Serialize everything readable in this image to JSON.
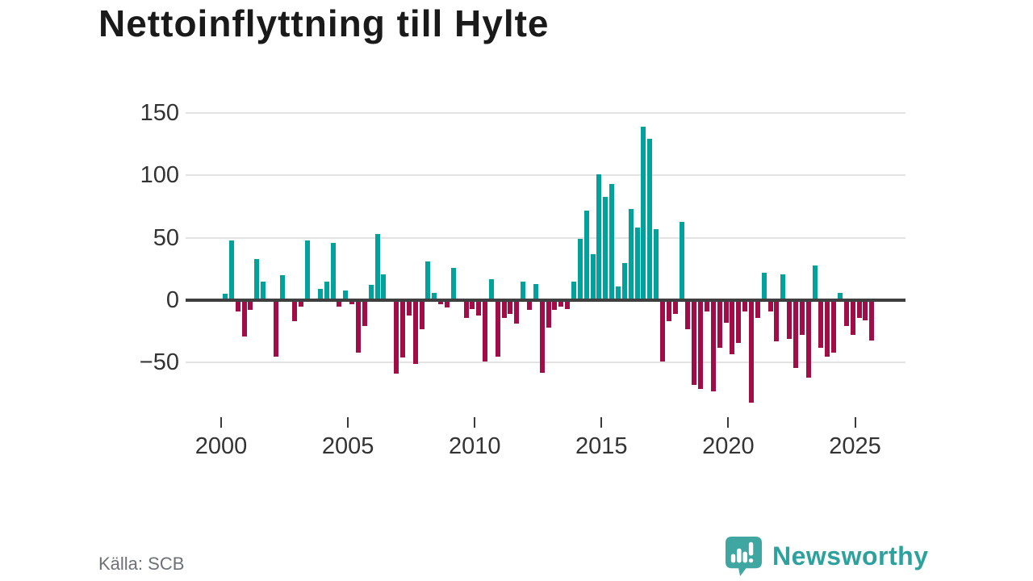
{
  "title": "Nettoinflyttning till Hylte",
  "source": "Källa: SCB",
  "brand": {
    "name": "Newsworthy"
  },
  "colors": {
    "positive": "#00a29b",
    "negative": "#a10d47",
    "grid": "#e3e3e3",
    "zero_line": "#3f3f3f",
    "title": "#1a1a1a",
    "axis_label": "#333333",
    "source_text": "#6e7177",
    "brand_teal": "#2da19d",
    "badge_teal": "#3fa6a1"
  },
  "chart_data": {
    "type": "bar",
    "title": "Nettoinflyttning till Hylte",
    "frequency": "quarterly",
    "x_ticks": [
      2000,
      2005,
      2010,
      2015,
      2020,
      2025
    ],
    "y_ticks": [
      150,
      100,
      50,
      0,
      -50
    ],
    "ylim": [
      -90,
      160
    ],
    "grid": true,
    "legend": "none",
    "series_name": "Nettoinflyttning",
    "points": [
      [
        "2000 Q1",
        5
      ],
      [
        "2000 Q2",
        48
      ],
      [
        "2000 Q3",
        -9
      ],
      [
        "2000 Q4",
        -29
      ],
      [
        "2001 Q1",
        -8
      ],
      [
        "2001 Q2",
        33
      ],
      [
        "2001 Q3",
        15
      ],
      [
        "2001 Q4",
        0
      ],
      [
        "2002 Q1",
        -45
      ],
      [
        "2002 Q2",
        20
      ],
      [
        "2002 Q3",
        0
      ],
      [
        "2002 Q4",
        -17
      ],
      [
        "2003 Q1",
        -5
      ],
      [
        "2003 Q2",
        48
      ],
      [
        "2003 Q3",
        0
      ],
      [
        "2003 Q4",
        9
      ],
      [
        "2004 Q1",
        15
      ],
      [
        "2004 Q2",
        46
      ],
      [
        "2004 Q3",
        -5
      ],
      [
        "2004 Q4",
        8
      ],
      [
        "2005 Q1",
        -3
      ],
      [
        "2005 Q2",
        -42
      ],
      [
        "2005 Q3",
        -21
      ],
      [
        "2005 Q4",
        12
      ],
      [
        "2006 Q1",
        53
      ],
      [
        "2006 Q2",
        21
      ],
      [
        "2006 Q3",
        0
      ],
      [
        "2006 Q4",
        -59
      ],
      [
        "2007 Q1",
        -46
      ],
      [
        "2007 Q2",
        -12
      ],
      [
        "2007 Q3",
        -51
      ],
      [
        "2007 Q4",
        -23
      ],
      [
        "2008 Q1",
        31
      ],
      [
        "2008 Q2",
        6
      ],
      [
        "2008 Q3",
        -3
      ],
      [
        "2008 Q4",
        -6
      ],
      [
        "2009 Q1",
        26
      ],
      [
        "2009 Q2",
        0
      ],
      [
        "2009 Q3",
        -14
      ],
      [
        "2009 Q4",
        -7
      ],
      [
        "2010 Q1",
        -12
      ],
      [
        "2010 Q2",
        -49
      ],
      [
        "2010 Q3",
        17
      ],
      [
        "2010 Q4",
        -45
      ],
      [
        "2011 Q1",
        -14
      ],
      [
        "2011 Q2",
        -11
      ],
      [
        "2011 Q3",
        -19
      ],
      [
        "2011 Q4",
        15
      ],
      [
        "2012 Q1",
        -8
      ],
      [
        "2012 Q2",
        13
      ],
      [
        "2012 Q3",
        -58
      ],
      [
        "2012 Q4",
        -22
      ],
      [
        "2013 Q1",
        -8
      ],
      [
        "2013 Q2",
        -5
      ],
      [
        "2013 Q3",
        -7
      ],
      [
        "2013 Q4",
        15
      ],
      [
        "2014 Q1",
        49
      ],
      [
        "2014 Q2",
        72
      ],
      [
        "2014 Q3",
        37
      ],
      [
        "2014 Q4",
        101
      ],
      [
        "2015 Q1",
        83
      ],
      [
        "2015 Q2",
        93
      ],
      [
        "2015 Q3",
        11
      ],
      [
        "2015 Q4",
        30
      ],
      [
        "2016 Q1",
        73
      ],
      [
        "2016 Q2",
        58
      ],
      [
        "2016 Q3",
        139
      ],
      [
        "2016 Q4",
        129
      ],
      [
        "2017 Q1",
        57
      ],
      [
        "2017 Q2",
        -49
      ],
      [
        "2017 Q3",
        -17
      ],
      [
        "2017 Q4",
        -11
      ],
      [
        "2018 Q1",
        63
      ],
      [
        "2018 Q2",
        -23
      ],
      [
        "2018 Q3",
        -68
      ],
      [
        "2018 Q4",
        -71
      ],
      [
        "2019 Q1",
        -9
      ],
      [
        "2019 Q2",
        -73
      ],
      [
        "2019 Q3",
        -38
      ],
      [
        "2019 Q4",
        -18
      ],
      [
        "2020 Q1",
        -43
      ],
      [
        "2020 Q2",
        -34
      ],
      [
        "2020 Q3",
        -9
      ],
      [
        "2020 Q4",
        -82
      ],
      [
        "2021 Q1",
        -14
      ],
      [
        "2021 Q2",
        22
      ],
      [
        "2021 Q3",
        -9
      ],
      [
        "2021 Q4",
        -33
      ],
      [
        "2022 Q1",
        21
      ],
      [
        "2022 Q2",
        -31
      ],
      [
        "2022 Q3",
        -54
      ],
      [
        "2022 Q4",
        -28
      ],
      [
        "2023 Q1",
        -62
      ],
      [
        "2023 Q2",
        28
      ],
      [
        "2023 Q3",
        -38
      ],
      [
        "2023 Q4",
        -45
      ],
      [
        "2024 Q1",
        -42
      ],
      [
        "2024 Q2",
        6
      ],
      [
        "2024 Q3",
        -21
      ],
      [
        "2024 Q4",
        -28
      ],
      [
        "2025 Q1",
        -14
      ],
      [
        "2025 Q2",
        -16
      ],
      [
        "2025 Q3",
        -32
      ]
    ]
  }
}
